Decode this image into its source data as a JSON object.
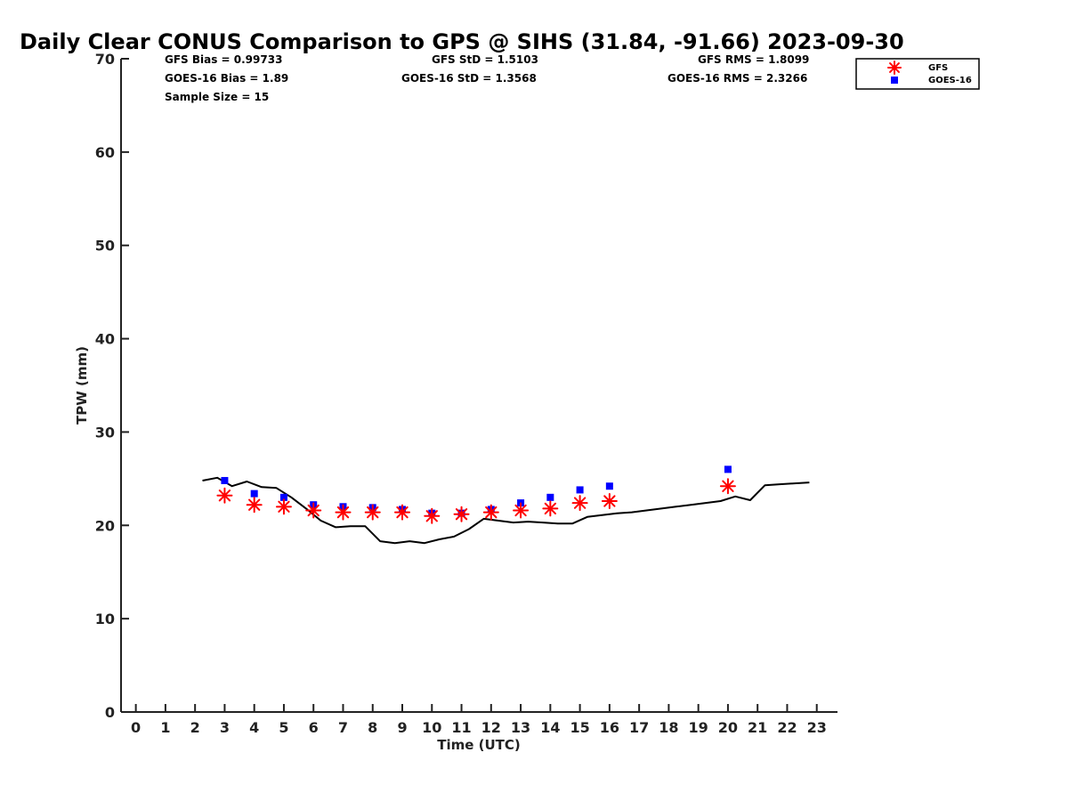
{
  "chart_data": {
    "type": "scatter",
    "title": "Daily Clear CONUS Comparison to GPS @ SIHS (31.84, -91.66) 2023-09-30",
    "xlabel": "Time (UTC)",
    "ylabel": "TPW (mm)",
    "xlim": [
      -0.5,
      23.7
    ],
    "ylim": [
      0,
      70
    ],
    "xticks": [
      0,
      1,
      2,
      3,
      4,
      5,
      6,
      7,
      8,
      9,
      10,
      11,
      12,
      13,
      14,
      15,
      16,
      17,
      18,
      19,
      20,
      21,
      22,
      23
    ],
    "yticks": [
      0,
      10,
      20,
      30,
      40,
      50,
      60,
      70
    ],
    "grid": false,
    "legend_position": "top-right",
    "stats": {
      "gfs_bias": "GFS Bias = 0.99733",
      "goes_bias": "GOES-16 Bias = 1.89",
      "sample_size": "Sample Size = 15",
      "gfs_std": "GFS StD = 1.5103",
      "goes_std": "GOES-16 StD = 1.3568",
      "gfs_rms": "GFS RMS = 1.8099",
      "goes_rms": "GOES-16 RMS = 2.3266"
    },
    "series": [
      {
        "name": "GFS",
        "marker": "asterisk",
        "color": "#ff0000",
        "x": [
          3,
          4,
          5,
          6,
          7,
          8,
          9,
          10,
          11,
          12,
          13,
          14,
          15,
          16,
          20
        ],
        "y": [
          23.2,
          22.2,
          22.0,
          21.6,
          21.4,
          21.4,
          21.4,
          21.0,
          21.2,
          21.4,
          21.6,
          21.8,
          22.4,
          22.6,
          24.2
        ]
      },
      {
        "name": "GOES-16",
        "marker": "square",
        "color": "#0000ff",
        "x": [
          3,
          4,
          5,
          6,
          7,
          8,
          9,
          10,
          11,
          12,
          13,
          14,
          15,
          16,
          20
        ],
        "y": [
          24.8,
          23.4,
          23.0,
          22.2,
          22.0,
          21.9,
          21.7,
          21.3,
          21.3,
          21.7,
          22.4,
          23.0,
          23.8,
          24.2,
          26.0
        ]
      },
      {
        "name": "GPS",
        "marker": "line",
        "color": "#000000",
        "x": [
          2.25,
          2.75,
          3.25,
          3.75,
          4.25,
          4.75,
          5.25,
          5.75,
          6.25,
          6.75,
          7.25,
          7.75,
          8.25,
          8.75,
          9.25,
          9.75,
          10.25,
          10.75,
          11.25,
          11.75,
          12.25,
          12.75,
          13.25,
          13.75,
          14.25,
          14.75,
          15.25,
          15.75,
          16.25,
          16.75,
          17.25,
          17.75,
          18.25,
          18.75,
          19.25,
          19.75,
          20.25,
          20.75,
          21.25,
          21.75,
          22.25,
          22.75
        ],
        "y": [
          24.8,
          25.1,
          24.2,
          24.7,
          24.1,
          24.0,
          23.0,
          21.8,
          20.5,
          19.8,
          19.9,
          19.9,
          18.3,
          18.1,
          18.3,
          18.1,
          18.5,
          18.8,
          19.6,
          20.7,
          20.5,
          20.3,
          20.4,
          20.3,
          20.2,
          20.2,
          20.9,
          21.1,
          21.3,
          21.4,
          21.6,
          21.8,
          22.0,
          22.2,
          22.4,
          22.6,
          23.1,
          22.7,
          24.3,
          24.4,
          24.5,
          24.6
        ]
      }
    ]
  }
}
